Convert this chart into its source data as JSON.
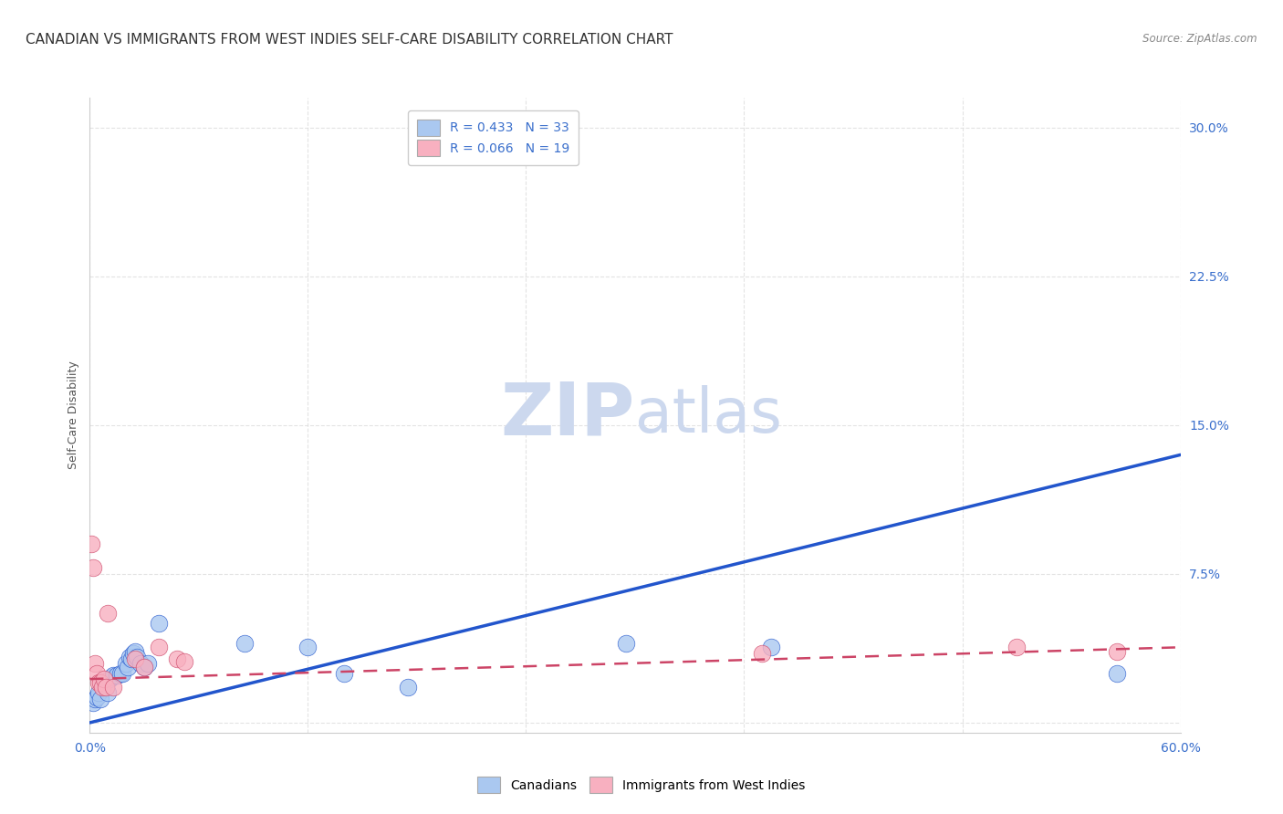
{
  "title": "CANADIAN VS IMMIGRANTS FROM WEST INDIES SELF-CARE DISABILITY CORRELATION CHART",
  "source": "Source: ZipAtlas.com",
  "ylabel": "Self-Care Disability",
  "xlim": [
    0.0,
    0.6
  ],
  "ylim": [
    -0.005,
    0.315
  ],
  "yticks": [
    0.0,
    0.075,
    0.15,
    0.225,
    0.3
  ],
  "ytick_labels": [
    "",
    "7.5%",
    "15.0%",
    "22.5%",
    "30.0%"
  ],
  "xticks": [
    0.0,
    0.12,
    0.24,
    0.36,
    0.48,
    0.6
  ],
  "xtick_labels": [
    "0.0%",
    "",
    "",
    "",
    "",
    "60.0%"
  ],
  "canadians_R": 0.433,
  "canadians_N": 33,
  "immigrants_R": 0.066,
  "immigrants_N": 19,
  "canadians_color": "#aac8f0",
  "canadians_line_color": "#2255cc",
  "immigrants_color": "#f8b0c0",
  "immigrants_line_color": "#cc4466",
  "watermark_zip": "ZIP",
  "watermark_atlas": "atlas",
  "watermark_color": "#ccd8ee",
  "canadians_x": [
    0.002,
    0.003,
    0.004,
    0.005,
    0.006,
    0.007,
    0.008,
    0.009,
    0.01,
    0.011,
    0.012,
    0.013,
    0.015,
    0.017,
    0.018,
    0.02,
    0.021,
    0.022,
    0.023,
    0.024,
    0.025,
    0.026,
    0.028,
    0.03,
    0.032,
    0.038,
    0.085,
    0.12,
    0.14,
    0.175,
    0.295,
    0.375,
    0.565
  ],
  "canadians_y": [
    0.01,
    0.012,
    0.013,
    0.015,
    0.012,
    0.02,
    0.021,
    0.018,
    0.015,
    0.022,
    0.023,
    0.024,
    0.024,
    0.025,
    0.025,
    0.03,
    0.028,
    0.033,
    0.032,
    0.035,
    0.036,
    0.033,
    0.03,
    0.028,
    0.03,
    0.05,
    0.04,
    0.038,
    0.025,
    0.018,
    0.04,
    0.038,
    0.025
  ],
  "immigrants_x": [
    0.001,
    0.002,
    0.003,
    0.004,
    0.005,
    0.006,
    0.007,
    0.008,
    0.009,
    0.01,
    0.013,
    0.025,
    0.03,
    0.038,
    0.048,
    0.052,
    0.37,
    0.51,
    0.565
  ],
  "immigrants_y": [
    0.09,
    0.078,
    0.03,
    0.025,
    0.02,
    0.02,
    0.018,
    0.022,
    0.018,
    0.055,
    0.018,
    0.032,
    0.028,
    0.038,
    0.032,
    0.031,
    0.035,
    0.038,
    0.036
  ],
  "canadians_trend_x": [
    0.0,
    0.6
  ],
  "canadians_trend_y": [
    0.0,
    0.135
  ],
  "immigrants_trend_x": [
    0.0,
    0.6
  ],
  "immigrants_trend_y": [
    0.022,
    0.038
  ],
  "background_color": "#ffffff",
  "grid_color": "#dddddd",
  "title_fontsize": 11,
  "axis_label_fontsize": 9,
  "tick_fontsize": 10,
  "legend_fontsize": 10,
  "watermark_fontsize_zip": 58,
  "watermark_fontsize_atlas": 48
}
